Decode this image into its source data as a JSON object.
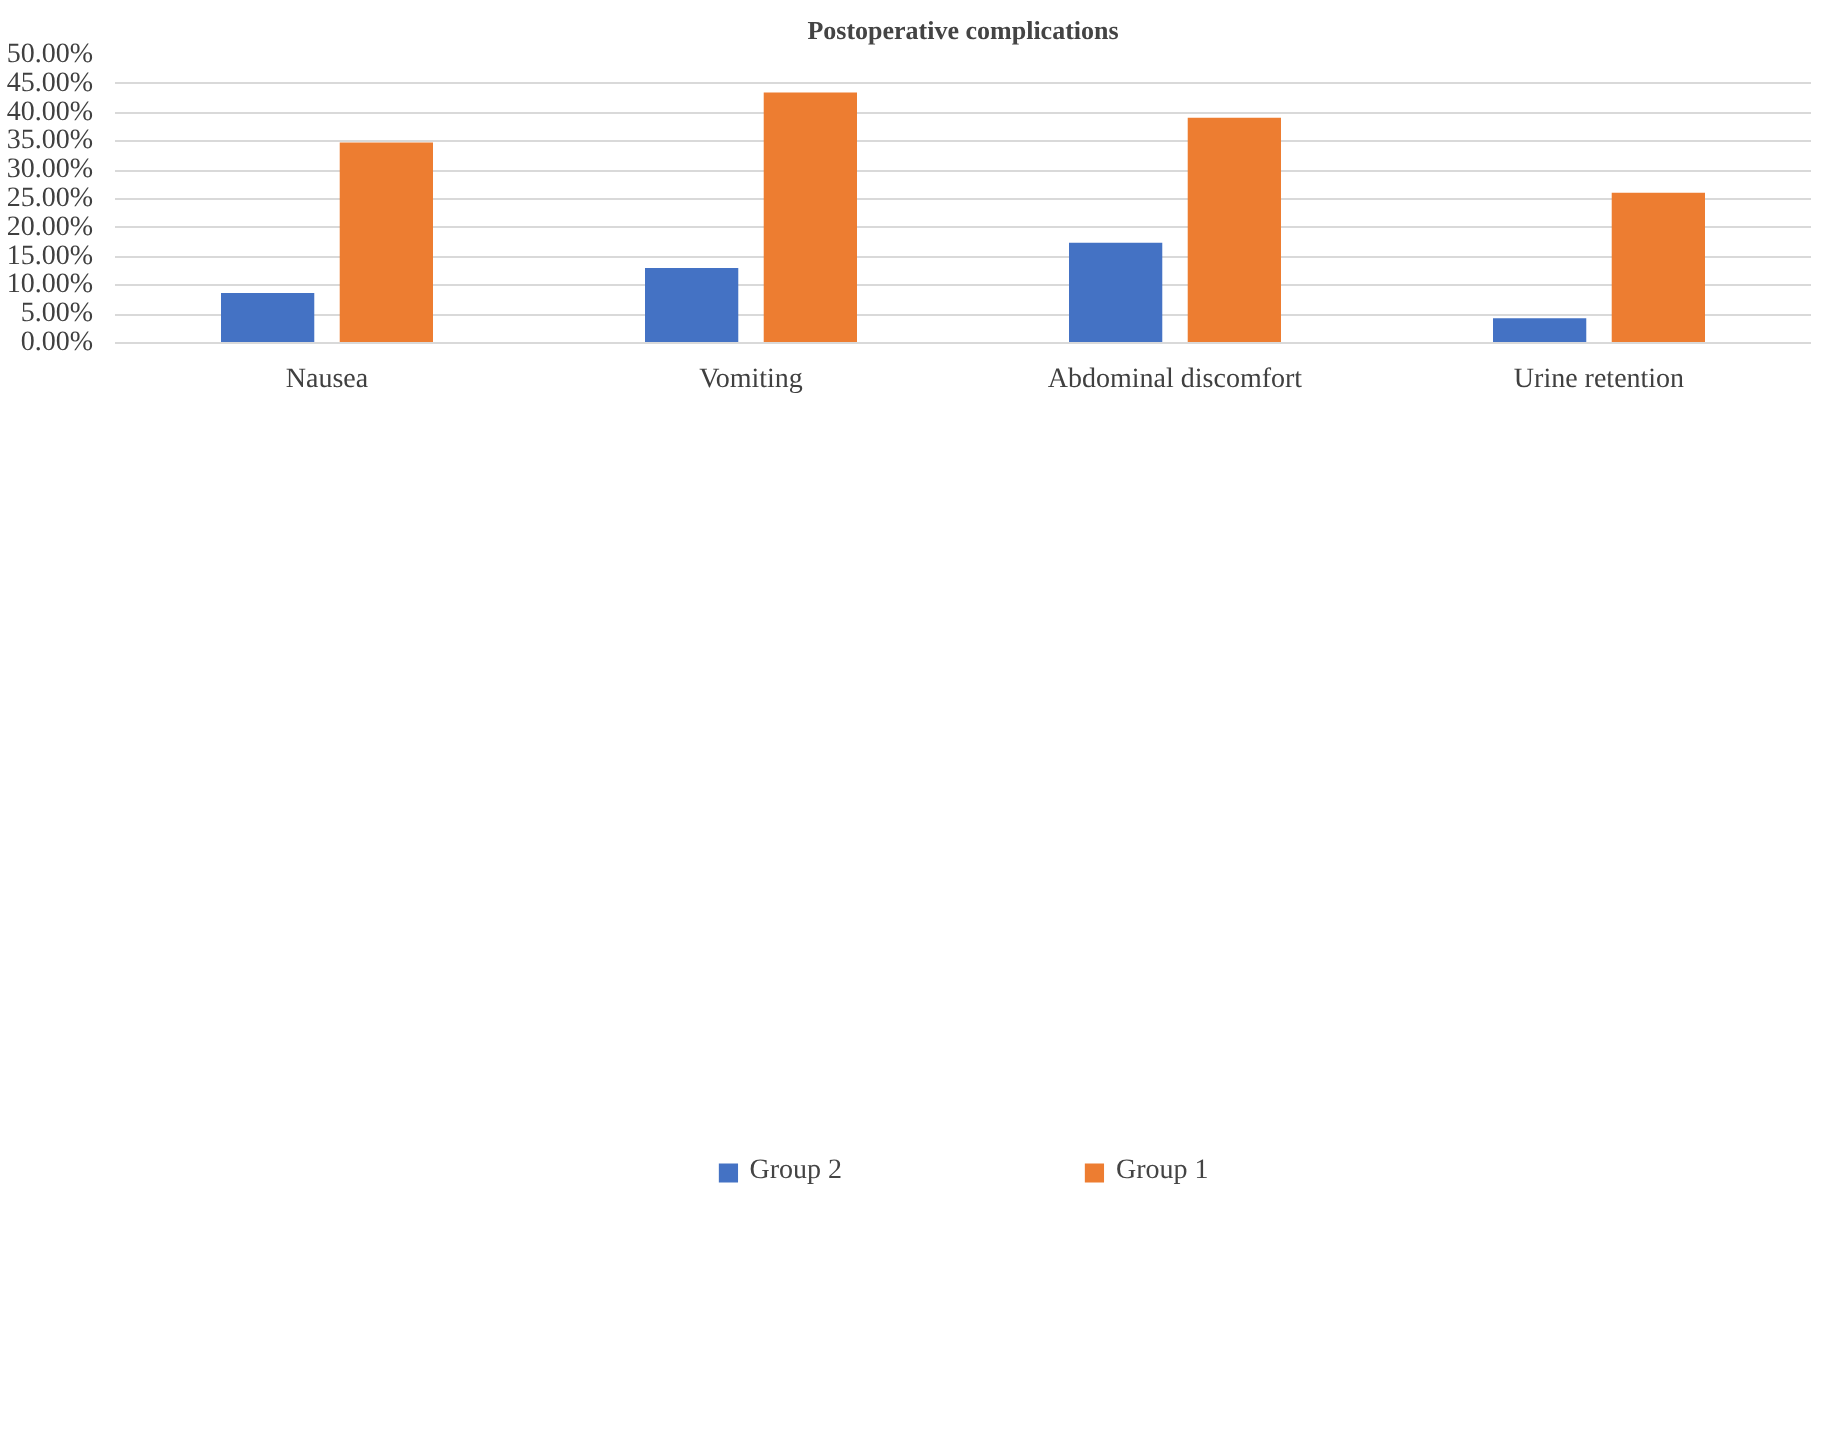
{
  "chart_data": {
    "type": "bar",
    "title": "Postoperative complications",
    "categories": [
      "Nausea",
      "Vomiting",
      "Abdominal discomfort",
      "Urine retention"
    ],
    "series": [
      {
        "name": "Group 2",
        "color": "#4472c4",
        "values": [
          8.7,
          13.0,
          17.4,
          4.3
        ]
      },
      {
        "name": "Group 1",
        "color": "#ed7d31",
        "values": [
          34.8,
          43.5,
          39.1,
          26.1
        ]
      }
    ],
    "ylim": [
      0,
      50
    ],
    "yticks": [
      {
        "value": 0,
        "label": "0.00%"
      },
      {
        "value": 5,
        "label": "5.00%"
      },
      {
        "value": 10,
        "label": "10.00%"
      },
      {
        "value": 15,
        "label": "15.00%"
      },
      {
        "value": 20,
        "label": "20.00%"
      },
      {
        "value": 25,
        "label": "25.00%"
      },
      {
        "value": 30,
        "label": "30.00%"
      },
      {
        "value": 35,
        "label": "35.00%"
      },
      {
        "value": 40,
        "label": "40.00%"
      },
      {
        "value": 45,
        "label": "45.00%"
      },
      {
        "value": 50,
        "label": "50.00%"
      }
    ],
    "grid": "y",
    "legend": "bottom"
  }
}
